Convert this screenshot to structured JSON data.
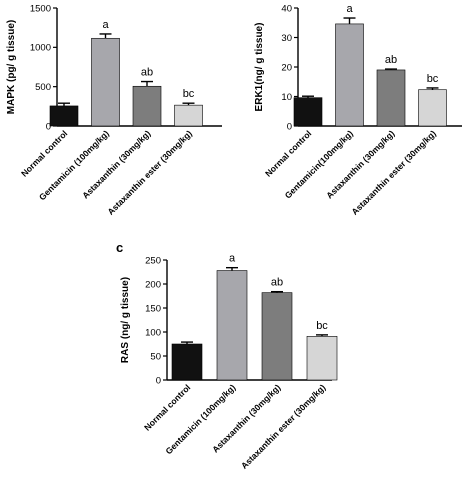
{
  "chart_data": [
    {
      "type": "bar",
      "panel_label": "",
      "ylabel": "MAPK (pg/ g tissue)",
      "ylim": [
        0,
        1500
      ],
      "yticks": [
        0,
        500,
        1000,
        1500
      ],
      "categories": [
        "Normal control",
        "Gentamicin (100mg/kg)",
        "Astaxanthin (30mg/kg)",
        "Astaxanthin ester (30mg/kg)"
      ],
      "values": [
        255,
        1115,
        505,
        265
      ],
      "errors": [
        35,
        55,
        60,
        25
      ],
      "significance": [
        "",
        "a",
        "ab",
        "bc"
      ],
      "colors": [
        "#111111",
        "#a7a7ac",
        "#7d7d7d",
        "#d6d6d6"
      ]
    },
    {
      "type": "bar",
      "panel_label": "",
      "ylabel": "ERK1(ng/ g tissue)",
      "ylim": [
        0,
        40
      ],
      "yticks": [
        0,
        10,
        20,
        30,
        40
      ],
      "categories": [
        "Normal control",
        "Gentamicin(100mg/kg)",
        "Astaxanthin (30mg/kg)",
        "Astaxanthin ester (30mg/kg)"
      ],
      "values": [
        9.6,
        34.6,
        19,
        12.3
      ],
      "errors": [
        0.5,
        2.0,
        0.3,
        0.6
      ],
      "significance": [
        "",
        "a",
        "ab",
        "bc"
      ],
      "colors": [
        "#111111",
        "#a7a7ac",
        "#7d7d7d",
        "#d6d6d6"
      ]
    },
    {
      "type": "bar",
      "panel_label": "c",
      "ylabel": "RAS (ng/ g tissue)",
      "ylim": [
        0,
        250
      ],
      "yticks": [
        0,
        50,
        100,
        150,
        200,
        250
      ],
      "categories": [
        "Normal control",
        "Gentamicin (100mg/kg)",
        "Astaxanthin (30mg/kg)",
        "Astaxanthin ester (30mg/kg)"
      ],
      "values": [
        75,
        228,
        182,
        91
      ],
      "errors": [
        4,
        6,
        2,
        3
      ],
      "significance": [
        "",
        "a",
        "ab",
        "bc"
      ],
      "colors": [
        "#111111",
        "#a7a7ac",
        "#7d7d7d",
        "#d6d6d6"
      ]
    }
  ]
}
